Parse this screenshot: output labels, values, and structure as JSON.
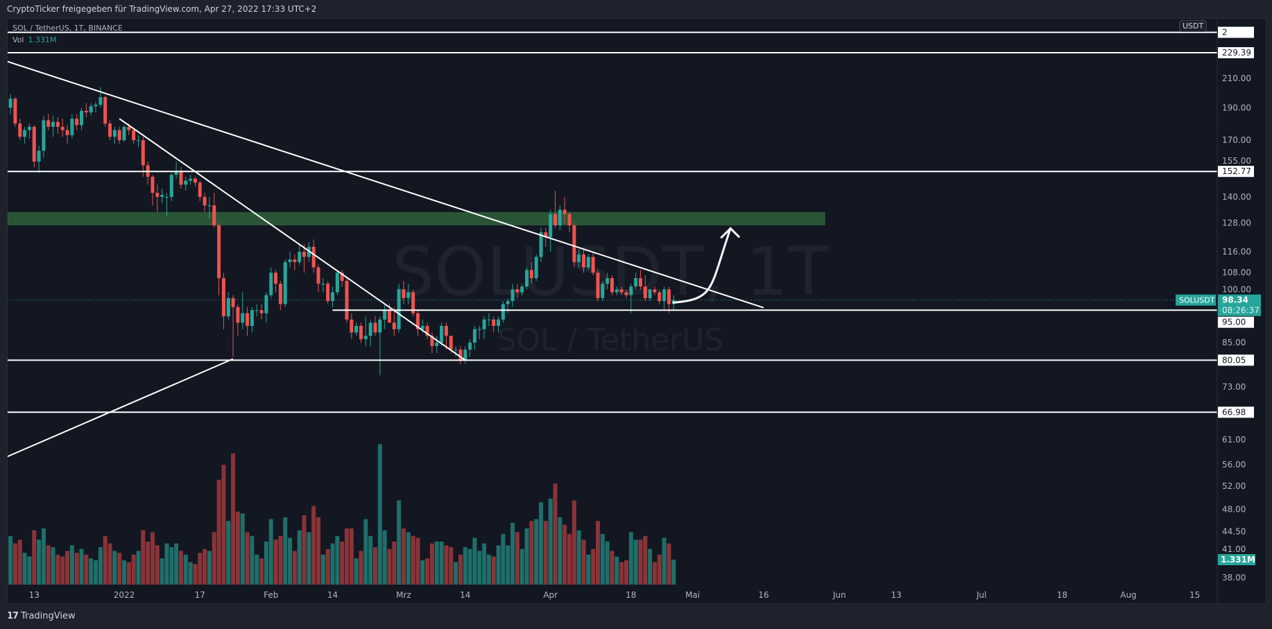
{
  "header": {
    "share_text": "CryptoTicker freigegeben für TradingView.com, Apr 27, 2022 17:33 UTC+2"
  },
  "legend": {
    "symbol_line": "SOL / TetherUS, 1T, BINANCE",
    "vol_label": "Vol",
    "vol_value": "1.331M"
  },
  "watermark": {
    "symbol": "SOLUSDT, 1T",
    "description": "SOL / TetherUS"
  },
  "price_axis": {
    "currency_button": "USDT"
  },
  "footer": {
    "brand": "TradingView"
  },
  "colors": {
    "background": "#131722",
    "up": "#26a69a",
    "down": "#ef5350",
    "volume_up": "#1f6f6a",
    "volume_down": "#8a3438",
    "zone": "#2a5535",
    "drawing": "#ffffff"
  },
  "chart_data": {
    "type": "candlestick",
    "symbol": "SOLUSDT",
    "interval": "1T",
    "y_scale": "log",
    "grid": false,
    "y_ticks": [
      "210.00",
      "190.00",
      "170.00",
      "155.00",
      "140.00",
      "128.00",
      "116.00",
      "108.00",
      "100.00",
      "85.00",
      "73.00",
      "61.00",
      "56.00",
      "52.00",
      "48.00",
      "44.50",
      "41.00",
      "38.00"
    ],
    "x_ticks": [
      {
        "label": "13",
        "date": "2021-12-13"
      },
      {
        "label": "2022",
        "date": "2022-01-01"
      },
      {
        "label": "17",
        "date": "2022-01-17"
      },
      {
        "label": "Feb",
        "date": "2022-02-01"
      },
      {
        "label": "14",
        "date": "2022-02-14"
      },
      {
        "label": "Mrz",
        "date": "2022-03-01"
      },
      {
        "label": "14",
        "date": "2022-03-14"
      },
      {
        "label": "Apr",
        "date": "2022-04-01"
      },
      {
        "label": "18",
        "date": "2022-04-18"
      },
      {
        "label": "Mai",
        "date": "2022-05-01"
      },
      {
        "label": "16",
        "date": "2022-05-16"
      },
      {
        "label": "Jun",
        "date": "2022-06-01"
      },
      {
        "label": "13",
        "date": "2022-06-13"
      },
      {
        "label": "Jul",
        "date": "2022-07-01"
      },
      {
        "label": "18",
        "date": "2022-07-18"
      },
      {
        "label": "Aug",
        "date": "2022-08-01"
      },
      {
        "label": "15",
        "date": "2022-08-15"
      }
    ],
    "last_price": {
      "symbol_label": "SOLUSDT",
      "price": "98.34",
      "countdown": "08:26:37",
      "volume": "1.331M"
    },
    "columns": [
      "date",
      "open",
      "high",
      "low",
      "close",
      "volume_m"
    ],
    "candles": [
      [
        "2021-12-08",
        190,
        199,
        186,
        196,
        2.6
      ],
      [
        "2021-12-09",
        196,
        197,
        178,
        180,
        2.2
      ],
      [
        "2021-12-10",
        180,
        183,
        170,
        172,
        2.4
      ],
      [
        "2021-12-11",
        172,
        178,
        168,
        176,
        1.7
      ],
      [
        "2021-12-12",
        176,
        180,
        171,
        178,
        1.5
      ],
      [
        "2021-12-13",
        178,
        179,
        155,
        158,
        2.9
      ],
      [
        "2021-12-14",
        158,
        167,
        152,
        164,
        2.4
      ],
      [
        "2021-12-15",
        164,
        185,
        160,
        182,
        3.0
      ],
      [
        "2021-12-16",
        182,
        186,
        176,
        178,
        2.1
      ],
      [
        "2021-12-17",
        178,
        185,
        172,
        181,
        2.0
      ],
      [
        "2021-12-18",
        181,
        184,
        174,
        178,
        1.6
      ],
      [
        "2021-12-19",
        178,
        183,
        172,
        176,
        1.5
      ],
      [
        "2021-12-20",
        176,
        179,
        168,
        173,
        1.8
      ],
      [
        "2021-12-21",
        173,
        186,
        171,
        183,
        2.1
      ],
      [
        "2021-12-22",
        183,
        186,
        176,
        179,
        1.7
      ],
      [
        "2021-12-23",
        179,
        190,
        176,
        188,
        1.9
      ],
      [
        "2021-12-24",
        188,
        193,
        184,
        187,
        1.6
      ],
      [
        "2021-12-25",
        187,
        193,
        185,
        191,
        1.4
      ],
      [
        "2021-12-26",
        191,
        194,
        187,
        192,
        1.3
      ],
      [
        "2021-12-27",
        192,
        204,
        190,
        197,
        2.0
      ],
      [
        "2021-12-28",
        197,
        198,
        178,
        180,
        2.6
      ],
      [
        "2021-12-29",
        180,
        182,
        170,
        172,
        2.2
      ],
      [
        "2021-12-30",
        172,
        178,
        168,
        176,
        1.8
      ],
      [
        "2021-12-31",
        176,
        178,
        168,
        170,
        1.7
      ],
      [
        "2022-01-01",
        170,
        179,
        169,
        178,
        1.3
      ],
      [
        "2022-01-02",
        178,
        180,
        173,
        176,
        1.2
      ],
      [
        "2022-01-03",
        176,
        177,
        168,
        170,
        1.6
      ],
      [
        "2022-01-04",
        170,
        173,
        166,
        170,
        1.8
      ],
      [
        "2022-01-05",
        170,
        172,
        150,
        156,
        2.9
      ],
      [
        "2022-01-06",
        156,
        158,
        146,
        150,
        2.3
      ],
      [
        "2022-01-07",
        150,
        151,
        136,
        142,
        2.8
      ],
      [
        "2022-01-08",
        142,
        146,
        133,
        140,
        2.1
      ],
      [
        "2022-01-09",
        140,
        144,
        137,
        141,
        1.4
      ],
      [
        "2022-01-10",
        140,
        142,
        131,
        140,
        2.2
      ],
      [
        "2022-01-11",
        140,
        152,
        138,
        151,
        2.0
      ],
      [
        "2022-01-12",
        151,
        158,
        149,
        153,
        2.2
      ],
      [
        "2022-01-13",
        153,
        155,
        144,
        146,
        1.8
      ],
      [
        "2022-01-14",
        146,
        150,
        143,
        148,
        1.6
      ],
      [
        "2022-01-15",
        148,
        151,
        146,
        149,
        1.2
      ],
      [
        "2022-01-16",
        149,
        150,
        145,
        147,
        1.1
      ],
      [
        "2022-01-17",
        147,
        148,
        138,
        140,
        1.7
      ],
      [
        "2022-01-18",
        140,
        142,
        133,
        136,
        1.9
      ],
      [
        "2022-01-19",
        136,
        140,
        130,
        136,
        1.8
      ],
      [
        "2022-01-20",
        136,
        142,
        126,
        127,
        2.8
      ],
      [
        "2022-01-21",
        127,
        128,
        100,
        106,
        5.6
      ],
      [
        "2022-01-22",
        106,
        108,
        89,
        93,
        6.4
      ],
      [
        "2022-01-23",
        93,
        101,
        92,
        99,
        3.4
      ],
      [
        "2022-01-24",
        99,
        100,
        81,
        96,
        7.0
      ],
      [
        "2022-01-25",
        96,
        97,
        87,
        91,
        3.9
      ],
      [
        "2022-01-26",
        91,
        101,
        89,
        94,
        3.8
      ],
      [
        "2022-01-27",
        94,
        96,
        87,
        90,
        2.8
      ],
      [
        "2022-01-28",
        90,
        96,
        88,
        95,
        2.6
      ],
      [
        "2022-01-29",
        95,
        97,
        93,
        95,
        1.6
      ],
      [
        "2022-01-30",
        95,
        97,
        92,
        94,
        1.4
      ],
      [
        "2022-01-31",
        94,
        101,
        91,
        100,
        2.3
      ],
      [
        "2022-02-01",
        100,
        110,
        99,
        108,
        3.5
      ],
      [
        "2022-02-02",
        108,
        109,
        101,
        104,
        2.4
      ],
      [
        "2022-02-03",
        104,
        105,
        95,
        97,
        2.6
      ],
      [
        "2022-02-04",
        97,
        113,
        96,
        112,
        3.6
      ],
      [
        "2022-02-05",
        112,
        116,
        110,
        113,
        2.5
      ],
      [
        "2022-02-06",
        113,
        115,
        109,
        112,
        1.8
      ],
      [
        "2022-02-07",
        112,
        119,
        111,
        116,
        2.9
      ],
      [
        "2022-02-08",
        116,
        119,
        108,
        114,
        3.7
      ],
      [
        "2022-02-09",
        114,
        120,
        112,
        118,
        2.8
      ],
      [
        "2022-02-10",
        118,
        121,
        108,
        110,
        4.2
      ],
      [
        "2022-02-11",
        110,
        111,
        101,
        104,
        3.6
      ],
      [
        "2022-02-12",
        104,
        106,
        101,
        104,
        1.6
      ],
      [
        "2022-02-13",
        104,
        105,
        97,
        98,
        1.9
      ],
      [
        "2022-02-14",
        98,
        103,
        96,
        101,
        2.2
      ],
      [
        "2022-02-15",
        101,
        109,
        100,
        108,
        2.6
      ],
      [
        "2022-02-16",
        108,
        109,
        103,
        105,
        2.3
      ],
      [
        "2022-02-17",
        105,
        106,
        91,
        92,
        3.0
      ],
      [
        "2022-02-18",
        92,
        94,
        86,
        88,
        3.0
      ],
      [
        "2022-02-19",
        88,
        91,
        87,
        90,
        1.4
      ],
      [
        "2022-02-20",
        90,
        91,
        85,
        86,
        1.8
      ],
      [
        "2022-02-21",
        86,
        93,
        84,
        87,
        3.5
      ],
      [
        "2022-02-22",
        87,
        92,
        84,
        91,
        2.6
      ],
      [
        "2022-02-23",
        91,
        93,
        87,
        88,
        2.0
      ],
      [
        "2022-02-24",
        88,
        93,
        76,
        92,
        7.5
      ],
      [
        "2022-02-25",
        92,
        97,
        89,
        95,
        2.9
      ],
      [
        "2022-02-26",
        95,
        97,
        91,
        91,
        1.9
      ],
      [
        "2022-02-27",
        91,
        96,
        87,
        89,
        2.3
      ],
      [
        "2022-02-28",
        89,
        104,
        88,
        102,
        4.5
      ],
      [
        "2022-03-01",
        102,
        105,
        97,
        99,
        3.0
      ],
      [
        "2022-03-02",
        99,
        104,
        97,
        101,
        2.8
      ],
      [
        "2022-03-03",
        101,
        102,
        93,
        94,
        2.6
      ],
      [
        "2022-03-04",
        94,
        95,
        87,
        89,
        2.5
      ],
      [
        "2022-03-05",
        89,
        92,
        88,
        90,
        1.3
      ],
      [
        "2022-03-06",
        90,
        91,
        86,
        87,
        1.4
      ],
      [
        "2022-03-07",
        87,
        88,
        82,
        84,
        2.2
      ],
      [
        "2022-03-08",
        84,
        87,
        82,
        85,
        2.3
      ],
      [
        "2022-03-09",
        85,
        91,
        84,
        90,
        2.3
      ],
      [
        "2022-03-10",
        90,
        91,
        83,
        87,
        2.1
      ],
      [
        "2022-03-11",
        87,
        87,
        82,
        83,
        2.0
      ],
      [
        "2022-03-12",
        83,
        84,
        81,
        83,
        1.2
      ],
      [
        "2022-03-13",
        83,
        84,
        79,
        80,
        1.6
      ],
      [
        "2022-03-14",
        80,
        84,
        79,
        83,
        2.0
      ],
      [
        "2022-03-15",
        83,
        86,
        81,
        85,
        1.9
      ],
      [
        "2022-03-16",
        85,
        90,
        83,
        89,
        2.5
      ],
      [
        "2022-03-17",
        89,
        90,
        86,
        89,
        1.8
      ],
      [
        "2022-03-18",
        89,
        93,
        86,
        92,
        2.2
      ],
      [
        "2022-03-19",
        92,
        94,
        90,
        92,
        1.6
      ],
      [
        "2022-03-20",
        92,
        93,
        88,
        90,
        1.5
      ],
      [
        "2022-03-21",
        90,
        93,
        88,
        92,
        2.1
      ],
      [
        "2022-03-22",
        92,
        98,
        91,
        97,
        2.7
      ],
      [
        "2022-03-23",
        97,
        99,
        94,
        98,
        2.1
      ],
      [
        "2022-03-24",
        98,
        104,
        96,
        102,
        3.3
      ],
      [
        "2022-03-25",
        102,
        104,
        99,
        101,
        2.8
      ],
      [
        "2022-03-26",
        101,
        104,
        100,
        103,
        1.9
      ],
      [
        "2022-03-27",
        103,
        110,
        102,
        109,
        3.0
      ],
      [
        "2022-03-28",
        109,
        112,
        104,
        106,
        3.4
      ],
      [
        "2022-03-29",
        106,
        115,
        105,
        114,
        3.5
      ],
      [
        "2022-03-30",
        114,
        126,
        112,
        124,
        4.4
      ],
      [
        "2022-03-31",
        124,
        126,
        118,
        122,
        3.4
      ],
      [
        "2022-04-01",
        122,
        134,
        116,
        132,
        4.6
      ],
      [
        "2022-04-02",
        132,
        143,
        126,
        127,
        5.4
      ],
      [
        "2022-04-03",
        127,
        136,
        125,
        134,
        3.6
      ],
      [
        "2022-04-04",
        134,
        140,
        128,
        132,
        3.2
      ],
      [
        "2022-04-05",
        132,
        133,
        124,
        127,
        2.7
      ],
      [
        "2022-04-06",
        127,
        128,
        110,
        112,
        4.5
      ],
      [
        "2022-04-07",
        112,
        117,
        110,
        115,
        2.9
      ],
      [
        "2022-04-08",
        115,
        117,
        108,
        110,
        2.4
      ],
      [
        "2022-04-09",
        110,
        115,
        109,
        114,
        1.6
      ],
      [
        "2022-04-10",
        114,
        116,
        107,
        108,
        1.9
      ],
      [
        "2022-04-11",
        108,
        109,
        98,
        99,
        3.4
      ],
      [
        "2022-04-12",
        99,
        105,
        98,
        104,
        2.7
      ],
      [
        "2022-04-13",
        104,
        108,
        102,
        106,
        2.3
      ],
      [
        "2022-04-14",
        106,
        107,
        100,
        101,
        1.8
      ],
      [
        "2022-04-15",
        101,
        103,
        100,
        102,
        1.5
      ],
      [
        "2022-04-16",
        102,
        103,
        100,
        101,
        1.2
      ],
      [
        "2022-04-17",
        101,
        102,
        99,
        100,
        1.3
      ],
      [
        "2022-04-18",
        100,
        104,
        94,
        103,
        2.8
      ],
      [
        "2022-04-19",
        103,
        108,
        102,
        106,
        2.4
      ],
      [
        "2022-04-20",
        106,
        109,
        102,
        103,
        2.4
      ],
      [
        "2022-04-21",
        103,
        107,
        98,
        99,
        2.6
      ],
      [
        "2022-04-22",
        99,
        102,
        98,
        102,
        1.9
      ],
      [
        "2022-04-23",
        102,
        103,
        100,
        101,
        1.2
      ],
      [
        "2022-04-24",
        101,
        102,
        97,
        98,
        1.6
      ],
      [
        "2022-04-25",
        98,
        103,
        95,
        102,
        2.5
      ],
      [
        "2022-04-26",
        102,
        103,
        94,
        97,
        2.2
      ],
      [
        "2022-04-27",
        97,
        100,
        95,
        98.34,
        1.331
      ]
    ],
    "horizontal_levels": [
      {
        "price": 246,
        "label": "2",
        "from": "2021-12-07"
      },
      {
        "price": 229.39,
        "label": "229.39",
        "from": "2021-12-07"
      },
      {
        "price": 152.77,
        "label": "152.77",
        "from": "2021-12-07"
      },
      {
        "price": 95.0,
        "label": "95.00",
        "from": "2022-02-14"
      },
      {
        "price": 80.05,
        "label": "80.05",
        "from": "2021-12-07"
      },
      {
        "price": 66.98,
        "label": "66.98",
        "from": "2021-12-07"
      }
    ],
    "trendlines": [
      {
        "from": [
          "2021-12-07",
          223
        ],
        "to": [
          "2022-05-16",
          95.8
        ]
      },
      {
        "from": [
          "2021-12-31",
          183
        ],
        "to": [
          "2022-03-14",
          80.05
        ]
      },
      {
        "from": [
          "2021-12-07",
          57.4
        ],
        "to": [
          "2022-01-24",
          80.4
        ]
      }
    ],
    "zone": {
      "from": "2021-12-07",
      "to": "2022-05-29",
      "low": 127,
      "high": 132.9
    },
    "projection_arrow": {
      "from": [
        "2022-04-27",
        97.5
      ],
      "to": [
        "2022-05-09",
        125.7
      ]
    }
  }
}
